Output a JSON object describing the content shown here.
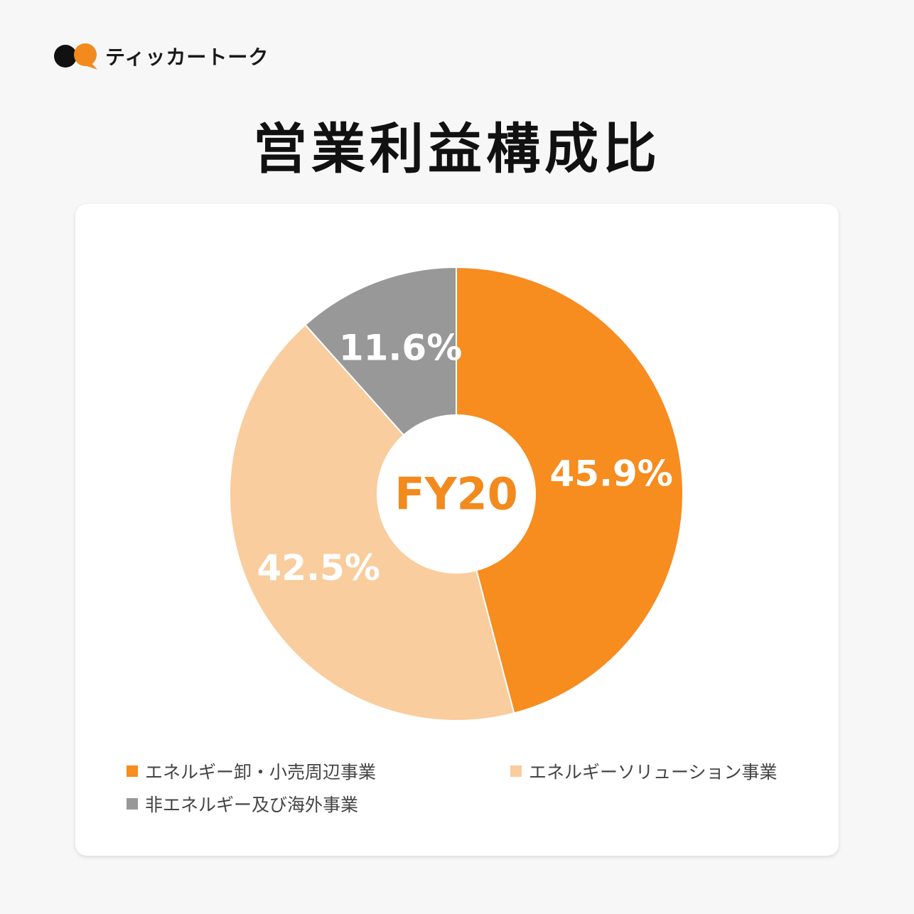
{
  "brand": {
    "name": "ティッカートーク",
    "logo_icon": "speech-bubbles-icon",
    "logo_colors": [
      "#111111",
      "#f28a1e"
    ]
  },
  "page": {
    "title": "営業利益構成比"
  },
  "chart_data": {
    "type": "pie",
    "variant": "donut",
    "center_label": "FY20",
    "center_label_color": "#f28a1e",
    "start_angle": "12 o'clock",
    "direction": "clockwise",
    "value_unit": "%",
    "categories": [
      "エネルギー卸・小売周辺事業",
      "エネルギーソリューション事業",
      "非エネルギー及び海外事業"
    ],
    "values": [
      45.9,
      42.5,
      11.6
    ],
    "labels": [
      "45.9%",
      "42.5%",
      "11.6%"
    ],
    "colors": [
      "#f78c1f",
      "#f9cd9e",
      "#989898"
    ],
    "label_color": "#ffffff",
    "slice_border_color": "#ffffff",
    "legend_position": "bottom",
    "legend_color": "#444444"
  }
}
